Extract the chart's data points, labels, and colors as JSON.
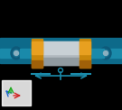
{
  "bg_color": "#000000",
  "body_color": "#b0b8c0",
  "flange_color": "#c8860a",
  "connector_color": "#1a7a9a",
  "arrow_color": "#1a8aaa",
  "axis_x_color": "#cc2222",
  "axis_y_color": "#22aa22",
  "axis_z_color": "#2266cc",
  "figsize": [
    1.35,
    1.22
  ],
  "dpi": 100
}
